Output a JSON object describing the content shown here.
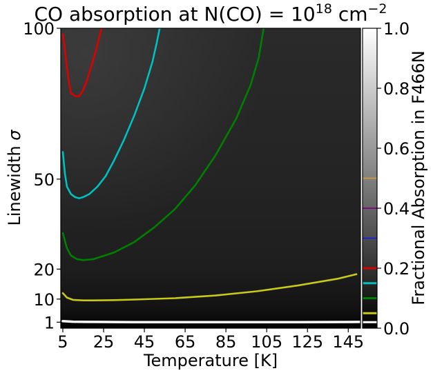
{
  "chart_data": {
    "type": "heatmap",
    "title_main": "CO absorption at N(CO) = 10",
    "title_exp": "18",
    "title_unit": " cm",
    "title_unit_exp": "−2",
    "xlabel": "Temperature [K]",
    "ylabel_text": "Linewidth ",
    "ylabel_symbol": "σ",
    "xlim": [
      4,
      151
    ],
    "ylim": [
      0,
      100
    ],
    "x_ticks": [
      5,
      25,
      45,
      65,
      85,
      105,
      125,
      145
    ],
    "x_tick_labels": [
      "5",
      "25",
      "45",
      "65",
      "85",
      "105",
      "125",
      "145"
    ],
    "y_tick_positions": [
      1,
      10,
      20,
      50,
      100
    ],
    "y_tick_labels": [
      "1",
      "10",
      "20",
      "50",
      "100"
    ],
    "y_axis_mapping": {
      "values": [
        0,
        1,
        10,
        20,
        50,
        100
      ],
      "fractions": [
        0,
        0.02,
        0.097,
        0.197,
        0.497,
        1.0
      ]
    },
    "colorbar": {
      "label": "Fractional Absorption in F466N",
      "range": [
        0,
        1
      ],
      "ticks": [
        0.0,
        0.2,
        0.4,
        0.6,
        0.8,
        1.0
      ],
      "tick_labels": [
        "0.0",
        "0.2",
        "0.4",
        "0.6",
        "0.8",
        "1.0"
      ],
      "colormap": [
        "#000000",
        "#ffffff"
      ],
      "contour_marks": [
        {
          "level": 0.02,
          "color": "#ffffff"
        },
        {
          "level": 0.05,
          "color": "#c9c91a"
        },
        {
          "level": 0.1,
          "color": "#008000"
        },
        {
          "level": 0.15,
          "color": "#00c0c0"
        },
        {
          "level": 0.2,
          "color": "#dd0000"
        },
        {
          "level": 0.3,
          "color": "#1a1aee"
        },
        {
          "level": 0.4,
          "color": "#800080"
        },
        {
          "level": 0.5,
          "color": "#d49a3a"
        }
      ]
    },
    "contours": [
      {
        "level": 0.02,
        "color": "#ffffff",
        "points": [
          [
            5,
            1.4
          ],
          [
            10,
            1.2
          ],
          [
            20,
            1.1
          ],
          [
            40,
            1.0
          ],
          [
            80,
            1.0
          ],
          [
            120,
            1.0
          ],
          [
            151,
            1.1
          ]
        ]
      },
      {
        "level": 0.05,
        "color": "#c9c91a",
        "points": [
          [
            5,
            12
          ],
          [
            7,
            10.5
          ],
          [
            10,
            9.7
          ],
          [
            15,
            9.5
          ],
          [
            20,
            9.5
          ],
          [
            30,
            9.6
          ],
          [
            40,
            9.8
          ],
          [
            60,
            10.3
          ],
          [
            80,
            11.2
          ],
          [
            100,
            12.6
          ],
          [
            120,
            14.5
          ],
          [
            140,
            16.8
          ],
          [
            149,
            18.3
          ]
        ]
      },
      {
        "level": 0.1,
        "color": "#008000",
        "points": [
          [
            5,
            32
          ],
          [
            7,
            27
          ],
          [
            9,
            24.5
          ],
          [
            12,
            23.3
          ],
          [
            15,
            23
          ],
          [
            20,
            23.3
          ],
          [
            30,
            25.5
          ],
          [
            40,
            29
          ],
          [
            50,
            34
          ],
          [
            60,
            40
          ],
          [
            70,
            48
          ],
          [
            80,
            58
          ],
          [
            90,
            70
          ],
          [
            97,
            81
          ],
          [
            101,
            90
          ],
          [
            103,
            98
          ],
          [
            103.5,
            100
          ]
        ]
      },
      {
        "level": 0.15,
        "color": "#00c0c0",
        "points": [
          [
            5,
            59
          ],
          [
            6,
            52
          ],
          [
            7,
            47.5
          ],
          [
            9,
            45
          ],
          [
            11,
            44
          ],
          [
            13,
            43.6
          ],
          [
            15,
            44
          ],
          [
            18,
            45
          ],
          [
            22,
            47.5
          ],
          [
            26,
            51
          ],
          [
            30,
            56
          ],
          [
            35,
            63
          ],
          [
            40,
            71
          ],
          [
            45,
            80
          ],
          [
            49,
            89
          ],
          [
            51,
            95
          ],
          [
            52.5,
            100
          ]
        ]
      },
      {
        "level": 0.2,
        "color": "#dd0000",
        "points": [
          [
            5,
            98
          ],
          [
            6,
            93
          ],
          [
            7,
            87
          ],
          [
            8,
            82
          ],
          [
            9,
            78.5
          ],
          [
            11,
            77.5
          ],
          [
            13,
            77.5
          ],
          [
            15,
            79.5
          ],
          [
            17,
            83
          ],
          [
            19,
            87.5
          ],
          [
            21,
            92
          ],
          [
            22.5,
            96
          ],
          [
            24,
            100
          ]
        ]
      }
    ]
  }
}
